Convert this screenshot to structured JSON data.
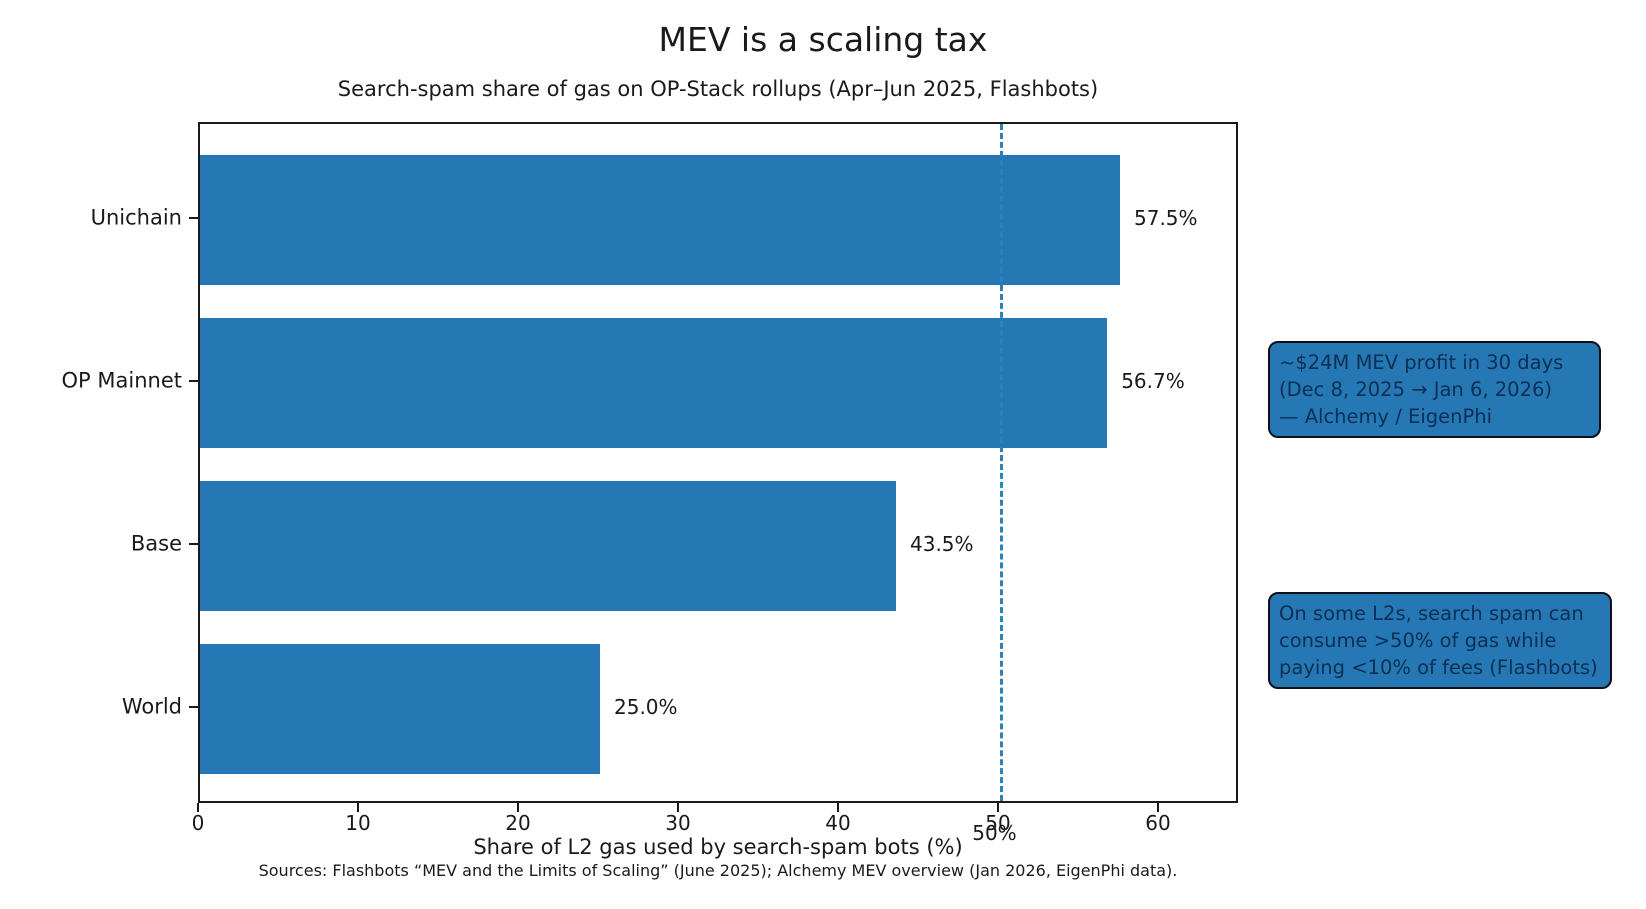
{
  "chart_data": {
    "type": "bar",
    "orientation": "horizontal",
    "title": "MEV is a scaling tax",
    "subtitle": "Search-spam share of gas on OP-Stack rollups (Apr–Jun 2025, Flashbots)",
    "xlabel": "Share of L2 gas used by search-spam bots (%)",
    "categories": [
      "Unichain",
      "OP Mainnet",
      "Base",
      "World"
    ],
    "values": [
      57.5,
      56.7,
      43.5,
      25.0
    ],
    "value_labels": [
      "57.5%",
      "56.7%",
      "43.5%",
      "25.0%"
    ],
    "xlim": [
      0,
      65
    ],
    "x_ticks": [
      0,
      10,
      20,
      30,
      40,
      50,
      60
    ],
    "reference_line": {
      "x": 50,
      "label": "50%"
    },
    "grid": false,
    "legend": null
  },
  "annotations": [
    {
      "lines": [
        "~$24M MEV profit in 30 days",
        "(Dec 8, 2025 → Jan 6, 2026)",
        "— Alchemy / EigenPhi"
      ]
    },
    {
      "lines": [
        "On some L2s, search spam can",
        "consume >50% of gas while",
        "paying <10% of fees (Flashbots)"
      ]
    }
  ],
  "source_note": "Sources: Flashbots “MEV and the Limits of Scaling” (June 2025); Alchemy MEV overview (Jan 2026, EigenPhi data).",
  "colors": {
    "bar": "#2578b4",
    "reference_line": "#2b83ba",
    "note_background": "#2578b4",
    "note_text": "#0c2f55",
    "note_border": "#0d1117",
    "axis": "#1a1a1a"
  }
}
